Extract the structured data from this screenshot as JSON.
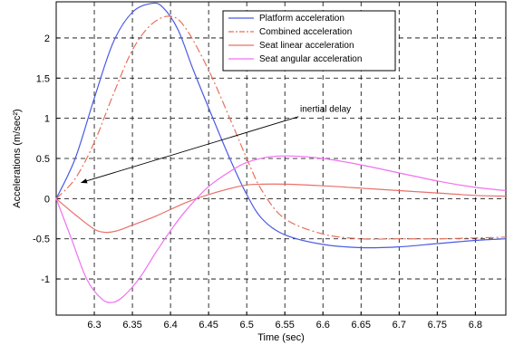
{
  "chart_data": {
    "type": "line",
    "xlabel": "Time  (sec)",
    "ylabel": "Accelerations  (m/sec²)",
    "xlim": [
      6.25,
      6.84
    ],
    "ylim": [
      -1.45,
      2.45
    ],
    "xticks": [
      6.3,
      6.35,
      6.4,
      6.45,
      6.5,
      6.55,
      6.6,
      6.65,
      6.7,
      6.75,
      6.8
    ],
    "xtick_labels": [
      "6.3",
      "6.35",
      "6.4",
      "6.45",
      "6.5",
      "6.55",
      "6.6",
      "6.65",
      "6.7",
      "6.75",
      "6.8"
    ],
    "yticks": [
      -1,
      -0.5,
      0,
      0.5,
      1,
      1.5,
      2
    ],
    "ytick_labels": [
      "-1",
      "-0.5",
      "0",
      "0.5",
      "1",
      "1.5",
      "2"
    ],
    "grid": true,
    "legend_position": "top-right",
    "series": [
      {
        "name": "Platform acceleration",
        "color": "#4a5be6",
        "dash": "solid",
        "x": [
          6.25,
          6.275,
          6.3,
          6.325,
          6.35,
          6.375,
          6.39,
          6.41,
          6.43,
          6.46,
          6.48,
          6.5,
          6.52,
          6.55,
          6.6,
          6.65,
          6.7,
          6.75,
          6.8,
          6.84
        ],
        "y": [
          0,
          0.5,
          1.25,
          1.95,
          2.32,
          2.43,
          2.38,
          2.1,
          1.6,
          0.9,
          0.45,
          0.05,
          -0.25,
          -0.45,
          -0.57,
          -0.61,
          -0.6,
          -0.56,
          -0.52,
          -0.5
        ]
      },
      {
        "name": "Combined acceleration",
        "color": "#e8705a",
        "dash": "dashdot",
        "x": [
          6.25,
          6.275,
          6.3,
          6.325,
          6.35,
          6.375,
          6.4,
          6.42,
          6.45,
          6.48,
          6.5,
          6.52,
          6.55,
          6.6,
          6.65,
          6.7,
          6.75,
          6.8,
          6.84
        ],
        "y": [
          0,
          0.25,
          0.7,
          1.3,
          1.85,
          2.17,
          2.27,
          2.12,
          1.6,
          0.95,
          0.5,
          0.1,
          -0.25,
          -0.44,
          -0.5,
          -0.5,
          -0.5,
          -0.49,
          -0.48
        ]
      },
      {
        "name": "Seat linear acceleration",
        "color": "#e8706a",
        "dash": "solid",
        "x": [
          6.25,
          6.275,
          6.3,
          6.315,
          6.33,
          6.35,
          6.38,
          6.42,
          6.45,
          6.48,
          6.5,
          6.52,
          6.55,
          6.6,
          6.65,
          6.7,
          6.75,
          6.8,
          6.84
        ],
        "y": [
          0,
          -0.2,
          -0.38,
          -0.42,
          -0.4,
          -0.33,
          -0.22,
          -0.05,
          0.05,
          0.13,
          0.17,
          0.18,
          0.18,
          0.16,
          0.13,
          0.1,
          0.07,
          0.04,
          0.03
        ]
      },
      {
        "name": "Seat angular acceleration",
        "color": "#f070f0",
        "dash": "solid",
        "x": [
          6.25,
          6.27,
          6.29,
          6.31,
          6.325,
          6.34,
          6.36,
          6.38,
          6.4,
          6.42,
          6.45,
          6.48,
          6.5,
          6.53,
          6.56,
          6.6,
          6.65,
          6.7,
          6.75,
          6.8,
          6.84
        ],
        "y": [
          0,
          -0.5,
          -1.0,
          -1.25,
          -1.29,
          -1.2,
          -0.98,
          -0.68,
          -0.4,
          -0.15,
          0.15,
          0.35,
          0.45,
          0.52,
          0.53,
          0.5,
          0.42,
          0.32,
          0.22,
          0.14,
          0.1
        ]
      }
    ],
    "annotations": [
      {
        "text": "inertial delay",
        "text_x": 6.57,
        "text_y": 1.08,
        "arrow_from_x": 6.568,
        "arrow_from_y": 1.02,
        "arrow_to_x": 6.283,
        "arrow_to_y": 0.2
      }
    ]
  }
}
